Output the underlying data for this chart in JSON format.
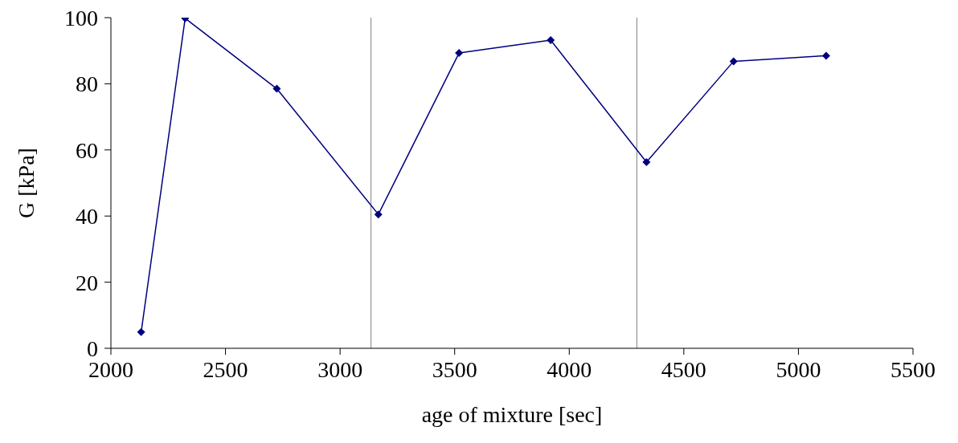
{
  "chart_data": {
    "type": "line",
    "xlabel": "age of mixture [sec]",
    "ylabel": "G [kPa]",
    "x": [
      2132,
      2324,
      2724,
      3167,
      3519,
      3919,
      4337,
      4717,
      5121
    ],
    "series": [
      {
        "color": "#000080",
        "values": [
          4.9,
          99.8,
          78.5,
          40.5,
          89.3,
          93.2,
          56.3,
          86.8,
          88.5
        ]
      }
    ],
    "xlim": [
      2000,
      5500
    ],
    "xticks": [
      2000,
      2500,
      3000,
      3500,
      4000,
      4500,
      5000,
      5500
    ],
    "ylim": [
      0,
      100
    ],
    "yticks": [
      0,
      20,
      40,
      60,
      80,
      100
    ],
    "ref_lines": [
      {
        "axis": "x",
        "value": 3135,
        "color": "#808080"
      },
      {
        "axis": "x",
        "value": 4295,
        "color": "#808080"
      }
    ],
    "grid": false,
    "legend": false,
    "marker": "diamond",
    "line_style": "solid"
  }
}
